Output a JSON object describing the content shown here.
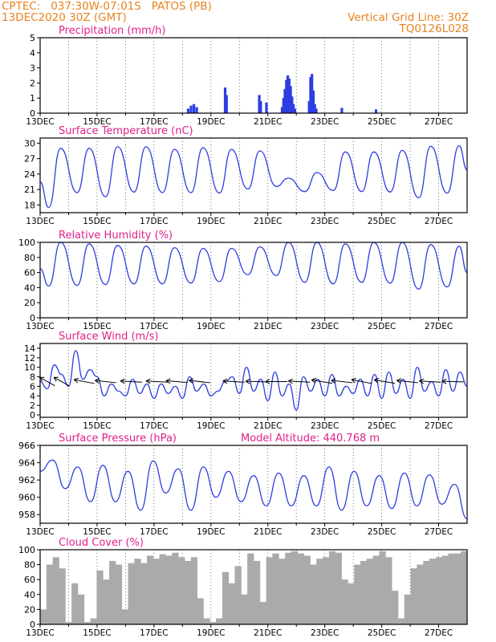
{
  "header": {
    "line1": "CPTEC:   037:30W-07:01S   PATOS (PB)",
    "line2": "13DEC2020 30Z (GMT)",
    "right1": "Vertical Grid Line: 30Z",
    "right2": "TQ0126L028"
  },
  "colors": {
    "header": "#e8821e",
    "panel_title": "#e0208a",
    "series": "#2c3ee0",
    "cloud": "#aaaaaa",
    "arrow": "#000000",
    "grid": "#555555"
  },
  "chart_data": [
    {
      "type": "bar",
      "title": "Precipitation (mm/h)",
      "xlabel": "",
      "ylabel": "",
      "ylim": [
        0,
        5
      ],
      "yticks": [
        0,
        1,
        2,
        3,
        4,
        5
      ],
      "xlim": [
        13,
        28
      ],
      "xticks": [
        "13DEC",
        "15DEC",
        "17DEC",
        "19DEC",
        "21DEC",
        "23DEC",
        "25DEC",
        "27DEC"
      ],
      "grid": "vertical dotted",
      "bars": [
        {
          "x": 18.2,
          "y": 0.3
        },
        {
          "x": 18.3,
          "y": 0.5
        },
        {
          "x": 18.4,
          "y": 0.6
        },
        {
          "x": 18.5,
          "y": 0.4
        },
        {
          "x": 19.5,
          "y": 1.7
        },
        {
          "x": 19.55,
          "y": 1.2
        },
        {
          "x": 20.7,
          "y": 1.2
        },
        {
          "x": 20.75,
          "y": 0.8
        },
        {
          "x": 20.95,
          "y": 0.7
        },
        {
          "x": 21.5,
          "y": 0.4
        },
        {
          "x": 21.55,
          "y": 1.0
        },
        {
          "x": 21.6,
          "y": 1.6
        },
        {
          "x": 21.65,
          "y": 2.2
        },
        {
          "x": 21.7,
          "y": 2.5
        },
        {
          "x": 21.75,
          "y": 2.3
        },
        {
          "x": 21.8,
          "y": 1.8
        },
        {
          "x": 21.85,
          "y": 1.1
        },
        {
          "x": 21.9,
          "y": 0.6
        },
        {
          "x": 21.95,
          "y": 0.3
        },
        {
          "x": 22.45,
          "y": 0.8
        },
        {
          "x": 22.5,
          "y": 2.4
        },
        {
          "x": 22.55,
          "y": 2.6
        },
        {
          "x": 22.6,
          "y": 1.5
        },
        {
          "x": 22.65,
          "y": 0.6
        },
        {
          "x": 22.7,
          "y": 0.3
        },
        {
          "x": 23.6,
          "y": 0.35
        },
        {
          "x": 24.8,
          "y": 0.25
        }
      ]
    },
    {
      "type": "line",
      "title": "Surface Temperature (nC)",
      "ylim": [
        16.5,
        31
      ],
      "yticks": [
        18,
        21,
        24,
        27,
        30
      ],
      "xlim": [
        13,
        28
      ],
      "xticks": [
        "13DEC",
        "15DEC",
        "17DEC",
        "19DEC",
        "21DEC",
        "23DEC",
        "25DEC",
        "27DEC"
      ],
      "daily": {
        "first_day": 13,
        "max": [
          29,
          29,
          29.3,
          29.3,
          28.8,
          29.1,
          28.8,
          28.5,
          23.2,
          24.3,
          28.3,
          28.3,
          28.6,
          29.4,
          29.5
        ],
        "min": [
          17.5,
          20.4,
          19.6,
          20.5,
          20.4,
          20.4,
          20.3,
          21.1,
          21.6,
          20.6,
          20.8,
          20.6,
          20.5,
          19.4,
          20.3
        ],
        "start": 22.5,
        "end": 24.8
      }
    },
    {
      "type": "line",
      "title": "Relative Humidity (%)",
      "ylim": [
        0,
        100
      ],
      "yticks": [
        0,
        20,
        40,
        60,
        80,
        100
      ],
      "xlim": [
        13,
        28
      ],
      "xticks": [
        "13DEC",
        "15DEC",
        "17DEC",
        "19DEC",
        "21DEC",
        "23DEC",
        "25DEC",
        "27DEC"
      ],
      "daily": {
        "first_day": 13,
        "max": [
          100,
          98,
          96,
          95,
          93,
          92,
          92,
          94,
          100,
          100,
          98,
          100,
          100,
          97,
          95
        ],
        "min": [
          42,
          43,
          44,
          45,
          45,
          46,
          48,
          57,
          56,
          47,
          45,
          47,
          46,
          38,
          41
        ],
        "start": 65,
        "end": 60
      }
    },
    {
      "type": "line",
      "title": "Surface Wind (m/s)",
      "ylim": [
        -0.5,
        15
      ],
      "yticks": [
        0,
        2,
        4,
        6,
        8,
        10,
        12,
        14
      ],
      "xlim": [
        13,
        28
      ],
      "xticks": [
        "13DEC",
        "15DEC",
        "17DEC",
        "19DEC",
        "21DEC",
        "23DEC",
        "25DEC",
        "27DEC"
      ],
      "series": [
        {
          "values": [
            7,
            5.5,
            10.5,
            8.5,
            6,
            13.5,
            7.5,
            9.5,
            8,
            4,
            6.5,
            5,
            4,
            7.5,
            4.5,
            6.5,
            3.5,
            6.5,
            4.5,
            6,
            3.5,
            8,
            5,
            6.5,
            4,
            5,
            7,
            8,
            4.5,
            10,
            5,
            7.5,
            3,
            9,
            4,
            6.5,
            1,
            8,
            5,
            7.5,
            4,
            8.5,
            4,
            6,
            4.5,
            7.5,
            4,
            8.5,
            3.5,
            9,
            4.5,
            7.5,
            3.5,
            10,
            5,
            7,
            4,
            9.5,
            5,
            9,
            6
          ]
        }
      ],
      "arrows": [
        {
          "x": 13.25,
          "u": -1,
          "v": 1
        },
        {
          "x": 13.75,
          "u": -1,
          "v": 1
        },
        {
          "x": 14.55,
          "u": -1,
          "v": 0.35
        },
        {
          "x": 15.3,
          "u": -1,
          "v": 0.2
        },
        {
          "x": 16.2,
          "u": -1,
          "v": 0.1
        },
        {
          "x": 17.1,
          "u": -1,
          "v": 0.1
        },
        {
          "x": 17.8,
          "u": -1,
          "v": 0.15
        },
        {
          "x": 18.6,
          "u": -1,
          "v": 0.2
        },
        {
          "x": 19.8,
          "u": -1,
          "v": 0.1
        },
        {
          "x": 20.6,
          "u": -1,
          "v": 0.05
        },
        {
          "x": 21.3,
          "u": -1,
          "v": 0.0
        },
        {
          "x": 22.1,
          "u": -1,
          "v": 0.1
        },
        {
          "x": 22.9,
          "u": -1,
          "v": 0.3
        },
        {
          "x": 23.6,
          "u": -1,
          "v": 0.2
        },
        {
          "x": 24.3,
          "u": -1,
          "v": 0.35
        },
        {
          "x": 25.1,
          "u": -1,
          "v": 0.3
        },
        {
          "x": 25.9,
          "u": -1,
          "v": 0.2
        },
        {
          "x": 26.7,
          "u": -1,
          "v": 0.1
        },
        {
          "x": 27.5,
          "u": -1,
          "v": 0.05
        }
      ]
    },
    {
      "type": "line",
      "title": "Surface Pressure (hPa)",
      "note": "Model Altitude: 440.768  m",
      "ylim": [
        957,
        966
      ],
      "yticks": [
        958,
        960,
        962,
        964,
        966
      ],
      "xlim": [
        13,
        28
      ],
      "xticks": [
        "13DEC",
        "15DEC",
        "17DEC",
        "19DEC",
        "21DEC",
        "23DEC",
        "25DEC",
        "27DEC"
      ],
      "series": [
        {
          "values": [
            963,
            964.3,
            961,
            963.5,
            959.5,
            963.7,
            959.5,
            963,
            958.5,
            964.2,
            960.5,
            963.3,
            958.5,
            963.5,
            960,
            963,
            959.5,
            962.5,
            959,
            962.8,
            959,
            962.5,
            959,
            963.5,
            958.5,
            963,
            959,
            962.5,
            958.7,
            962.8,
            959,
            962.6,
            959.2,
            961.5,
            957.5
          ]
        }
      ]
    },
    {
      "type": "bar",
      "title": "Cloud Cover (%)",
      "ylim": [
        0,
        100
      ],
      "yticks": [
        0,
        20,
        40,
        60,
        80,
        100
      ],
      "xlim": [
        13,
        28
      ],
      "xticks": [
        "13DEC",
        "15DEC",
        "17DEC",
        "19DEC",
        "21DEC",
        "23DEC",
        "25DEC",
        "27DEC"
      ],
      "series": [
        {
          "values": [
            20,
            80,
            90,
            75,
            3,
            55,
            40,
            3,
            8,
            72,
            60,
            85,
            80,
            20,
            82,
            88,
            82,
            92,
            88,
            94,
            92,
            96,
            90,
            85,
            90,
            35,
            8,
            3,
            8,
            70,
            55,
            78,
            40,
            95,
            85,
            30,
            90,
            95,
            88,
            96,
            98,
            95,
            92,
            80,
            88,
            90,
            98,
            96,
            60,
            55,
            80,
            85,
            88,
            92,
            98,
            90,
            45,
            8,
            40,
            75,
            80,
            85,
            88,
            90,
            92,
            95,
            95,
            98
          ]
        }
      ]
    }
  ]
}
